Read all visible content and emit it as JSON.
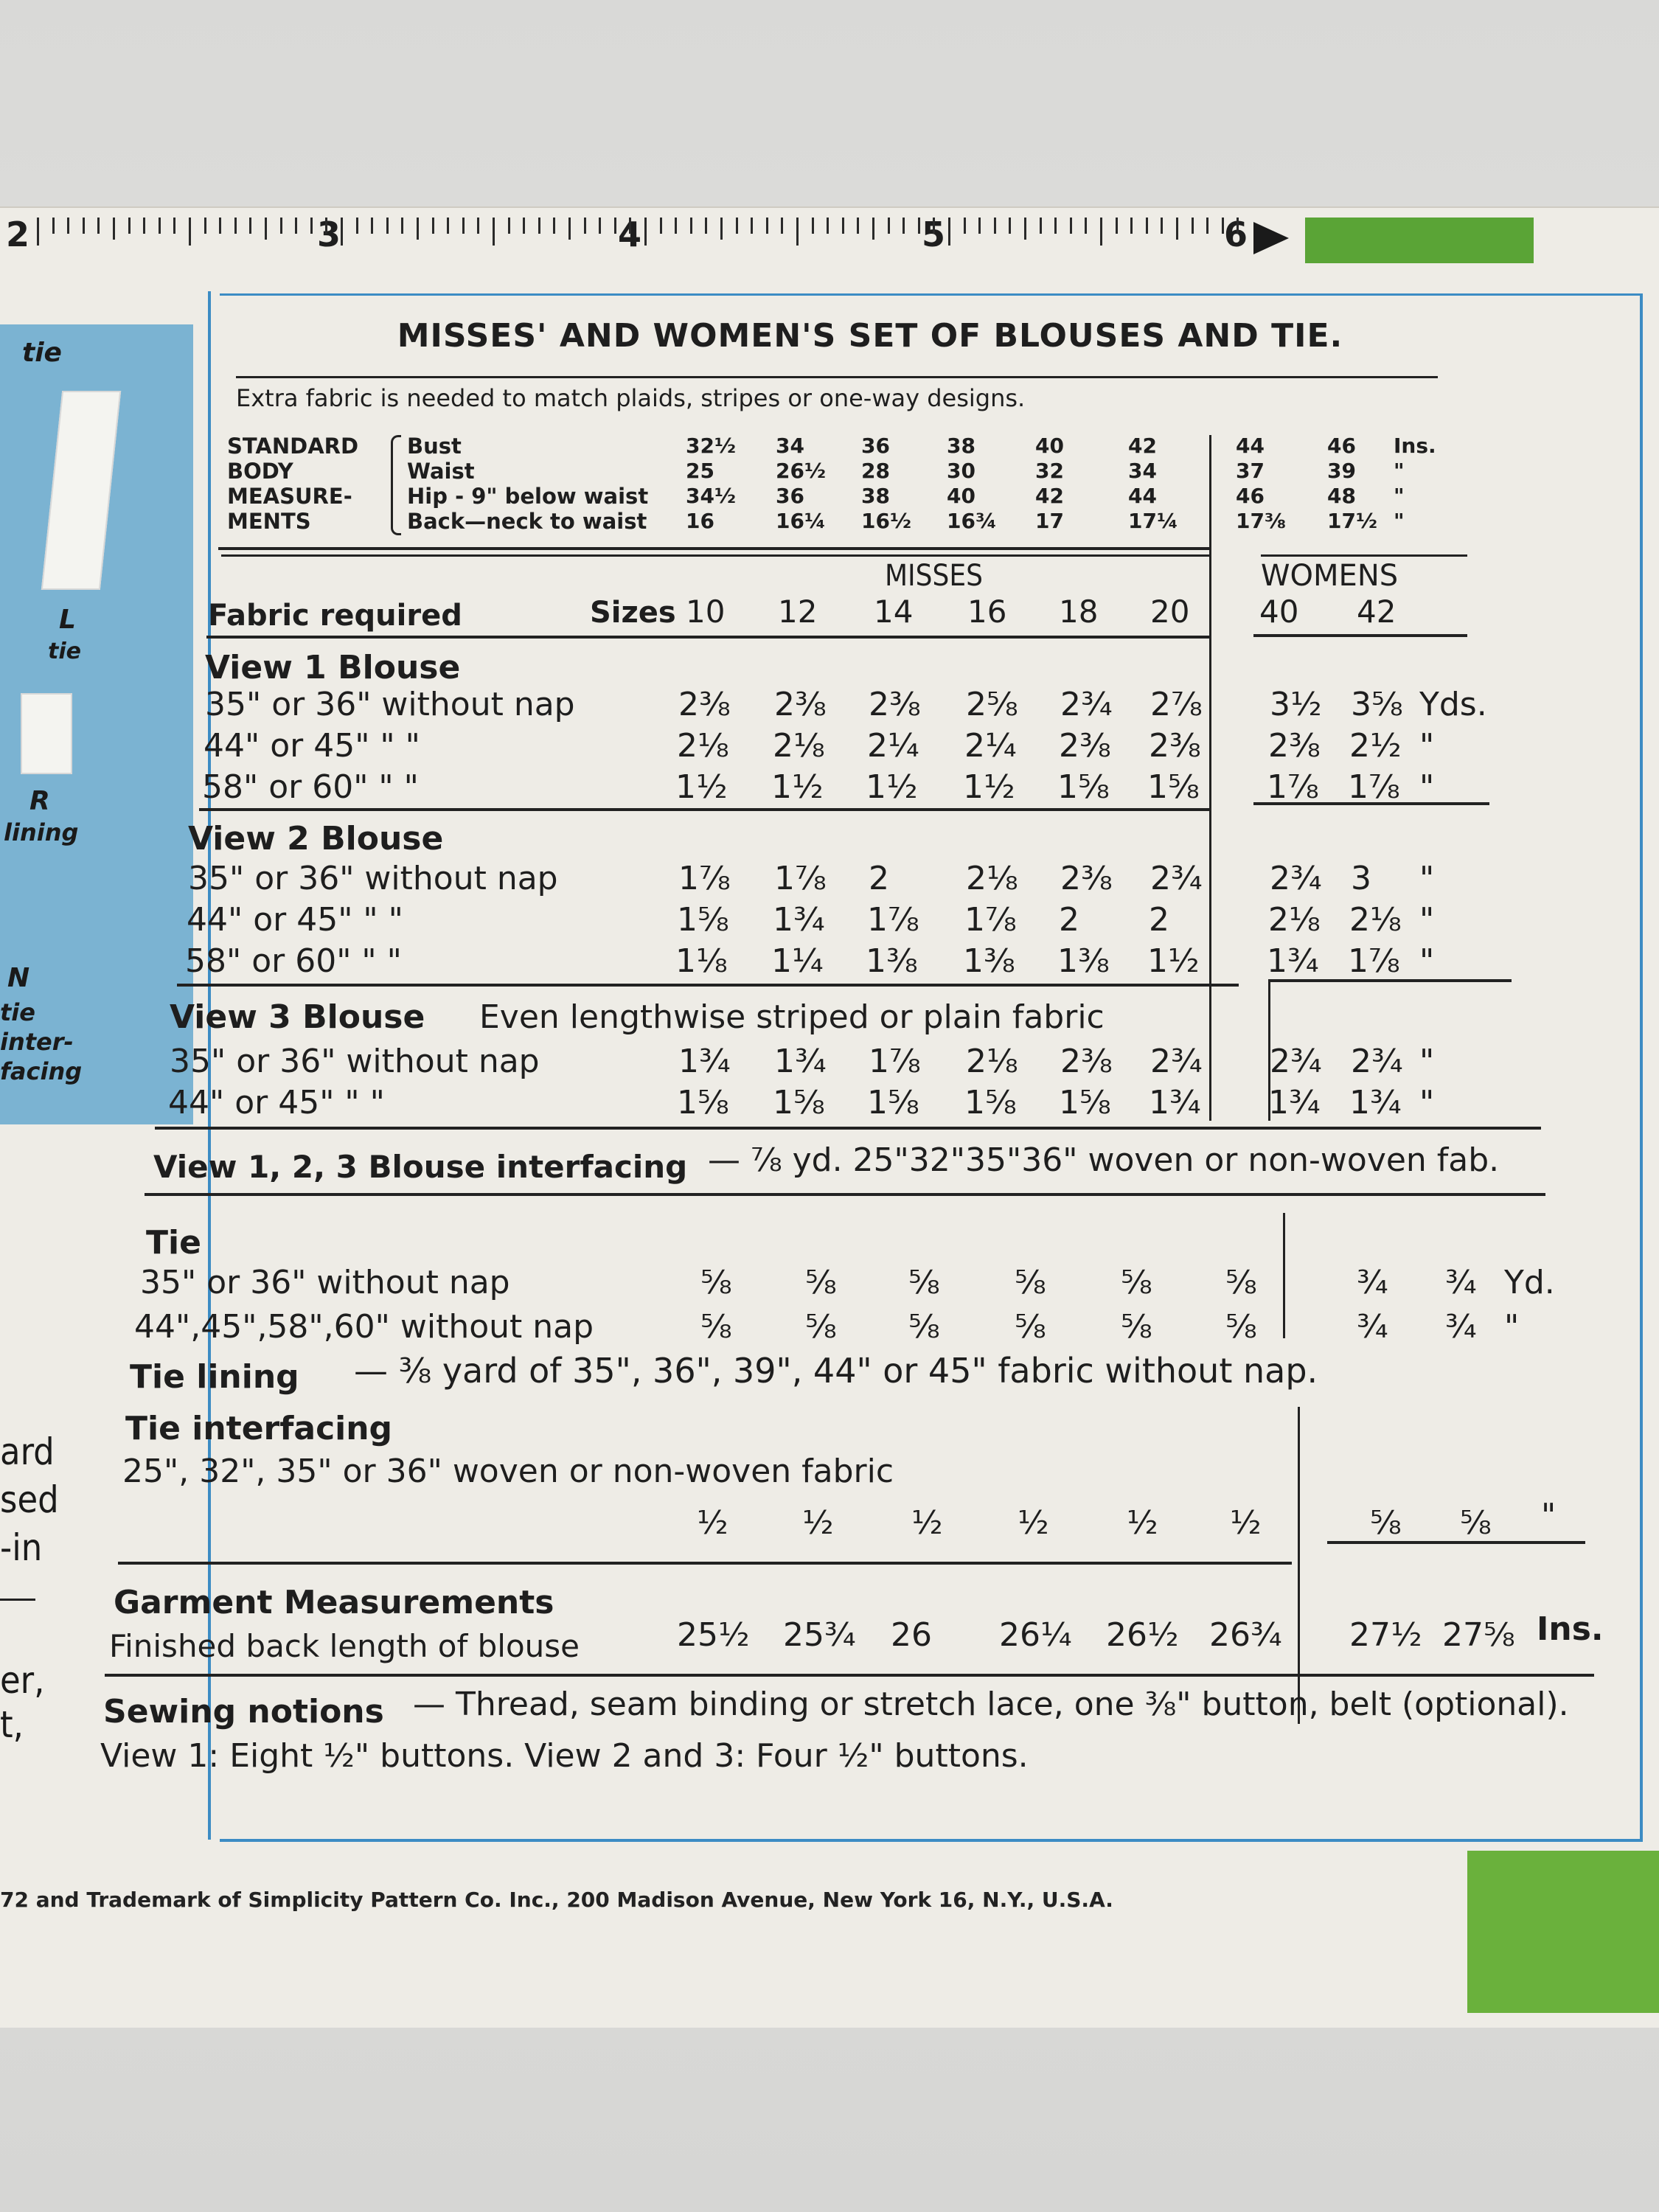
{
  "ruler": {
    "numbers": [
      "2",
      "3",
      "4",
      "5",
      "6"
    ]
  },
  "side": {
    "labels": [
      "tie",
      "L",
      "tie",
      "R",
      "lining",
      "N",
      "tie",
      "inter-",
      "facing"
    ],
    "fragments": [
      "ard",
      "sed",
      "-in",
      "er,",
      "t,"
    ]
  },
  "title": "MISSES' AND WOMEN'S SET OF BLOUSES AND TIE.",
  "subtitle": "Extra fabric is needed to match plaids, stripes or one-way designs.",
  "body_measurements": {
    "group_label": [
      "STANDARD",
      "BODY",
      "MEASURE-",
      "MENTS"
    ],
    "rows": [
      {
        "label": "Bust",
        "values": [
          "32½",
          "34",
          "36",
          "38",
          "40",
          "42",
          "44",
          "46"
        ],
        "unit": "Ins."
      },
      {
        "label": "Waist",
        "values": [
          "25",
          "26½",
          "28",
          "30",
          "32",
          "34",
          "37",
          "39"
        ],
        "unit": "\""
      },
      {
        "label": "Hip - 9\" below waist",
        "values": [
          "34½",
          "36",
          "38",
          "40",
          "42",
          "44",
          "46",
          "48"
        ],
        "unit": "\""
      },
      {
        "label": "Back—neck to waist",
        "values": [
          "16",
          "16¼",
          "16½",
          "16¾",
          "17",
          "17¼",
          "17⅜",
          "17½"
        ],
        "unit": "\""
      }
    ]
  },
  "fabric": {
    "label": "Fabric required",
    "sizes_label": "Sizes",
    "misses_label": "MISSES",
    "womens_label": "WOMENS",
    "sizes": [
      "10",
      "12",
      "14",
      "16",
      "18",
      "20",
      "40",
      "42"
    ]
  },
  "view1": {
    "title": "View 1   Blouse",
    "rows": [
      {
        "label": "35\" or 36\" without nap",
        "values": [
          "2⅜",
          "2⅜",
          "2⅜",
          "2⅝",
          "2¾",
          "2⅞",
          "3½",
          "3⅝"
        ],
        "unit": "Yds."
      },
      {
        "label": "44\" or 45\"      \"        \"",
        "values": [
          "2⅛",
          "2⅛",
          "2¼",
          "2¼",
          "2⅜",
          "2⅜",
          "2⅜",
          "2½"
        ],
        "unit": "\""
      },
      {
        "label": "58\" or 60\"      \"        \"",
        "values": [
          "1½",
          "1½",
          "1½",
          "1½",
          "1⅝",
          "1⅝",
          "1⅞",
          "1⅞"
        ],
        "unit": "\""
      }
    ]
  },
  "view2": {
    "title": "View 2   Blouse",
    "rows": [
      {
        "label": "35\" or 36\" without nap",
        "values": [
          "1⅞",
          "1⅞",
          "2",
          "2⅛",
          "2⅜",
          "2¾",
          "2¾",
          "3"
        ],
        "unit": "\""
      },
      {
        "label": "44\" or 45\"      \"        \"",
        "values": [
          "1⅝",
          "1¾",
          "1⅞",
          "1⅞",
          "2",
          "2",
          "2⅛",
          "2⅛"
        ],
        "unit": "\""
      },
      {
        "label": "58\" or 60\"      \"        \"",
        "values": [
          "1⅛",
          "1¼",
          "1⅜",
          "1⅜",
          "1⅜",
          "1½",
          "1¾",
          "1⅞"
        ],
        "unit": "\""
      }
    ]
  },
  "view3": {
    "title": "View 3   Blouse",
    "subtitle": "Even lengthwise striped or plain fabric",
    "rows": [
      {
        "label": "35\" or 36\" without nap",
        "values": [
          "1¾",
          "1¾",
          "1⅞",
          "2⅛",
          "2⅜",
          "2¾",
          "2¾",
          "2¾"
        ],
        "unit": "\""
      },
      {
        "label": "44\" or 45\"      \"        \"",
        "values": [
          "1⅝",
          "1⅝",
          "1⅝",
          "1⅝",
          "1⅝",
          "1¾",
          "1¾",
          "1¾"
        ],
        "unit": "\""
      }
    ]
  },
  "interfacing": {
    "title": "View 1, 2, 3 Blouse interfacing",
    "text": "— ⅞ yd. 25\"32\"35\"36\" woven or non-woven fab."
  },
  "tie": {
    "title": "Tie",
    "rows": [
      {
        "label": "35\" or 36\" without nap",
        "values": [
          "⅝",
          "⅝",
          "⅝",
          "⅝",
          "⅝",
          "⅝",
          "¾",
          "¾"
        ],
        "unit": "Yd."
      },
      {
        "label": "44\",45\",58\",60\" without nap",
        "values": [
          "⅝",
          "⅝",
          "⅝",
          "⅝",
          "⅝",
          "⅝",
          "¾",
          "¾"
        ],
        "unit": "\""
      }
    ],
    "lining_title": "Tie lining",
    "lining_text": "— ⅜ yard of 35\", 36\", 39\", 44\" or 45\" fabric without nap.",
    "interfacing_title": "Tie interfacing",
    "interfacing_label": "25\", 32\", 35\" or 36\" woven or non-woven fabric",
    "interfacing_values": [
      "½",
      "½",
      "½",
      "½",
      "½",
      "½",
      "⅝",
      "⅝"
    ],
    "interfacing_unit": "\""
  },
  "garment": {
    "title": "Garment Measurements",
    "label": "Finished back length of blouse",
    "values": [
      "25½",
      "25¾",
      "26",
      "26¼",
      "26½",
      "26¾",
      "27½",
      "27⅝"
    ],
    "unit": "Ins."
  },
  "notions": {
    "title": "Sewing notions",
    "line1": "— Thread, seam binding or stretch lace, one ⅜\" button, belt (optional).",
    "line2": "View 1: Eight ½\" buttons. View 2 and 3: Four ½\" buttons."
  },
  "footer": "72 and Trademark of Simplicity Pattern Co. Inc., 200 Madison Avenue, New York 16, N.Y., U.S.A.",
  "colors": {
    "border_blue": "#3c8cc4",
    "panel_blue": "#7bb3d2",
    "green": "#5aa436",
    "paper": "#eeece6"
  }
}
